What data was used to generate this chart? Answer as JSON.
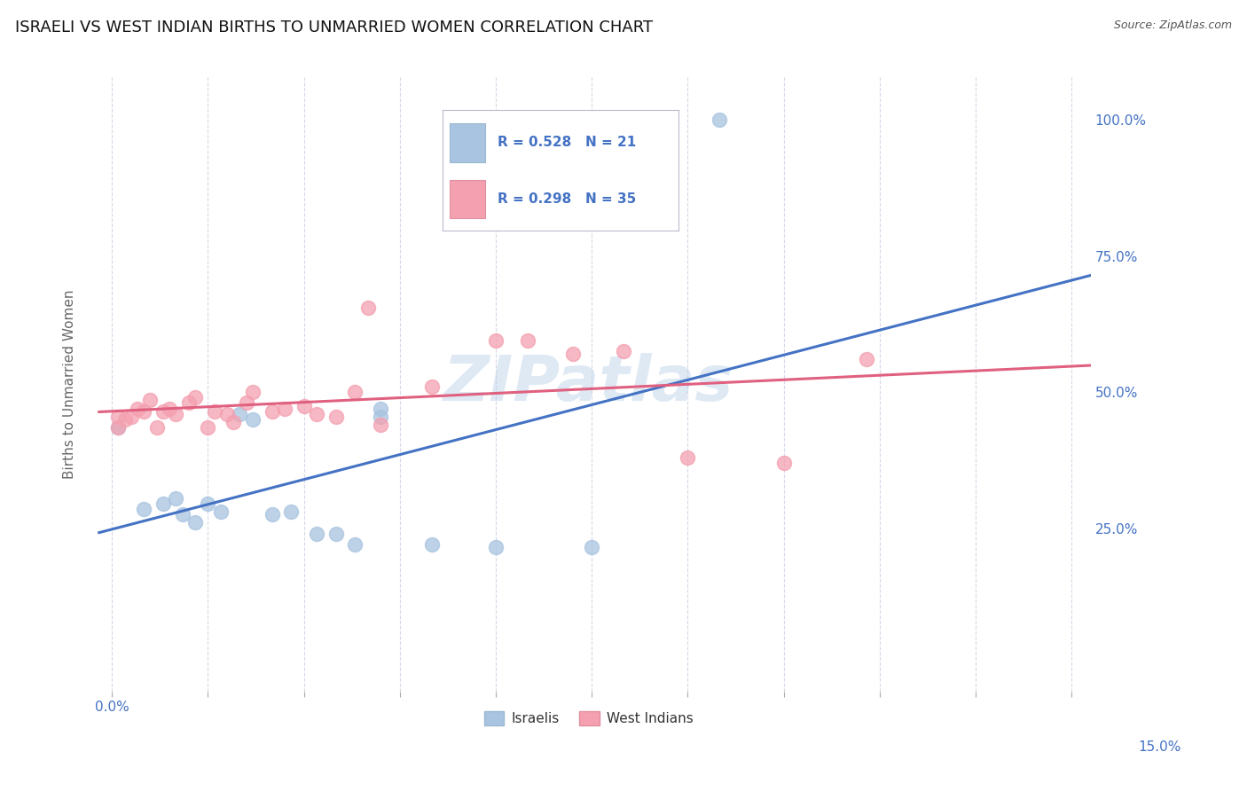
{
  "title": "ISRAELI VS WEST INDIAN BIRTHS TO UNMARRIED WOMEN CORRELATION CHART",
  "source": "Source: ZipAtlas.com",
  "ylabel": "Births to Unmarried Women",
  "x_min": 0.0,
  "x_max": 0.15,
  "y_min": 0.0,
  "y_max": 1.05,
  "israeli_color": "#a8c4e0",
  "west_indian_color": "#f4a0b0",
  "israeli_line_color": "#4472c4",
  "west_indian_line_color": "#e06080",
  "legend_R_color": "#4472c4",
  "watermark": "ZIPatlas",
  "R_israeli": 0.528,
  "N_israeli": 21,
  "R_west_indian": 0.298,
  "N_west_indian": 35,
  "israeli_x": [
    0.001,
    0.005,
    0.008,
    0.01,
    0.011,
    0.013,
    0.015,
    0.017,
    0.02,
    0.022,
    0.025,
    0.028,
    0.032,
    0.035,
    0.038,
    0.042,
    0.042,
    0.05,
    0.06,
    0.075,
    0.095
  ],
  "israeli_y": [
    0.435,
    0.285,
    0.295,
    0.305,
    0.275,
    0.26,
    0.295,
    0.28,
    0.46,
    0.45,
    0.275,
    0.28,
    0.24,
    0.24,
    0.22,
    0.47,
    0.455,
    0.22,
    0.215,
    0.215,
    1.0
  ],
  "west_indian_x": [
    0.001,
    0.001,
    0.002,
    0.003,
    0.004,
    0.005,
    0.006,
    0.007,
    0.008,
    0.009,
    0.01,
    0.012,
    0.013,
    0.015,
    0.016,
    0.018,
    0.019,
    0.021,
    0.022,
    0.025,
    0.027,
    0.03,
    0.032,
    0.035,
    0.038,
    0.04,
    0.042,
    0.05,
    0.06,
    0.065,
    0.072,
    0.08,
    0.09,
    0.105,
    0.118
  ],
  "west_indian_y": [
    0.435,
    0.455,
    0.45,
    0.455,
    0.47,
    0.465,
    0.485,
    0.435,
    0.465,
    0.47,
    0.46,
    0.48,
    0.49,
    0.435,
    0.465,
    0.46,
    0.445,
    0.48,
    0.5,
    0.465,
    0.47,
    0.475,
    0.46,
    0.455,
    0.5,
    0.655,
    0.44,
    0.51,
    0.595,
    0.595,
    0.57,
    0.575,
    0.38,
    0.37,
    0.56
  ],
  "background_color": "#ffffff",
  "grid_color": "#d8d8e8",
  "title_fontsize": 13,
  "source_fontsize": 9,
  "tick_fontsize": 11,
  "ylabel_fontsize": 11
}
